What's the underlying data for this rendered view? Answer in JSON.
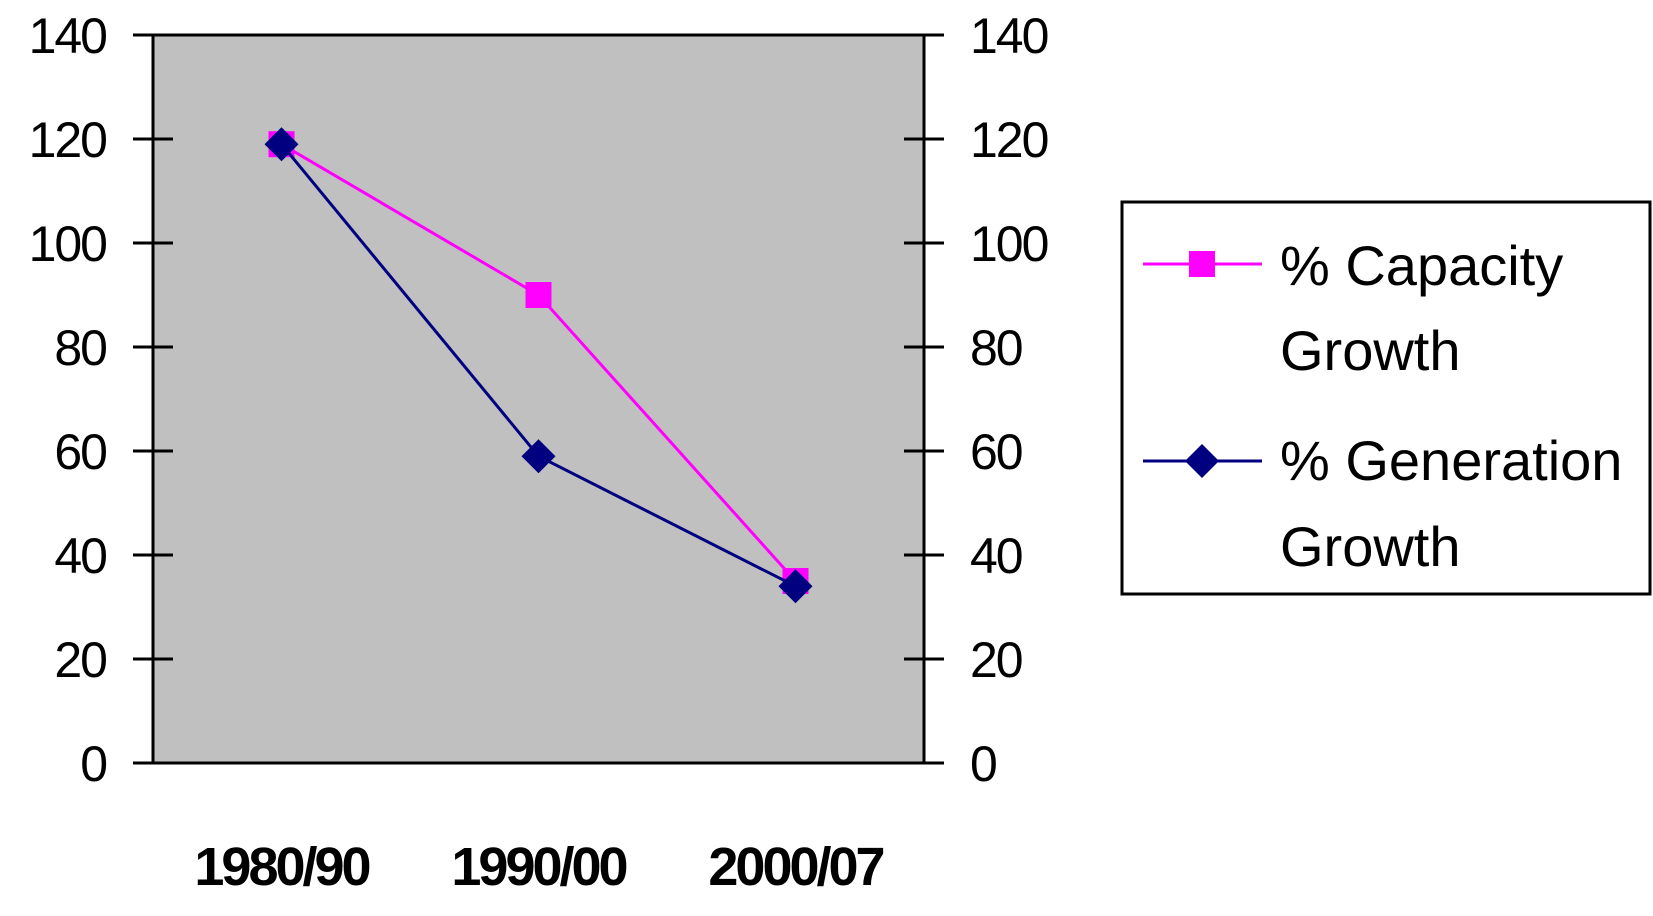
{
  "chart_data": {
    "type": "line",
    "categories": [
      "1980/90",
      "1990/00",
      "2000/07"
    ],
    "series": [
      {
        "name": "% Capacity Growth",
        "name_lines": [
          "% Capacity",
          "Growth"
        ],
        "values": [
          119,
          90,
          35
        ],
        "color": "#ff00ff",
        "marker": "square"
      },
      {
        "name": "% Generation Growth",
        "name_lines": [
          "% Generation",
          "Growth"
        ],
        "values": [
          119,
          59,
          34
        ],
        "color": "#000080",
        "marker": "diamond"
      }
    ],
    "ylim": [
      0,
      140
    ],
    "yticks": [
      0,
      20,
      40,
      60,
      80,
      100,
      120,
      140
    ],
    "secondary_yaxis": true,
    "plot_background": "#c0c0c0",
    "grid": false,
    "legend": "right"
  }
}
